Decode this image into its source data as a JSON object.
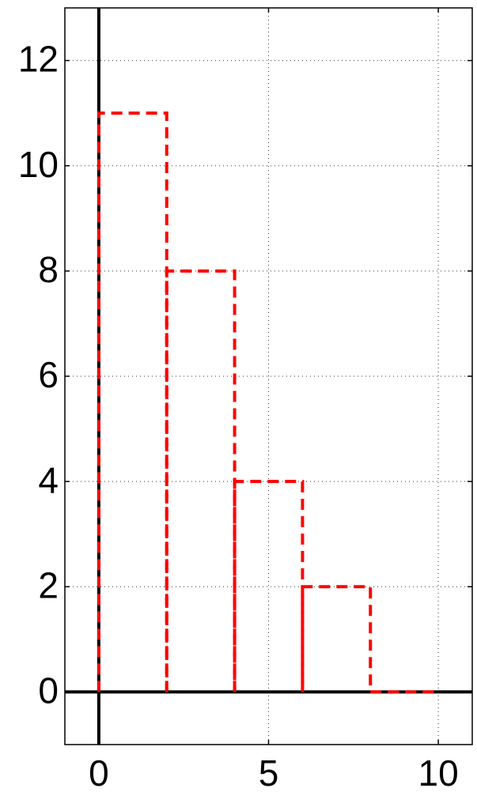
{
  "chart_data": {
    "type": "histogram",
    "bins": [
      0,
      2,
      4,
      6,
      8,
      10
    ],
    "values": [
      11,
      8,
      4,
      2,
      0
    ],
    "color": "#ff0000",
    "line_style": "dashed",
    "xlim": [
      -1,
      11
    ],
    "ylim": [
      -1,
      13
    ],
    "xticks": [
      0,
      5,
      10
    ],
    "yticks": [
      0,
      2,
      4,
      6,
      8,
      10,
      12
    ],
    "grid": true
  }
}
